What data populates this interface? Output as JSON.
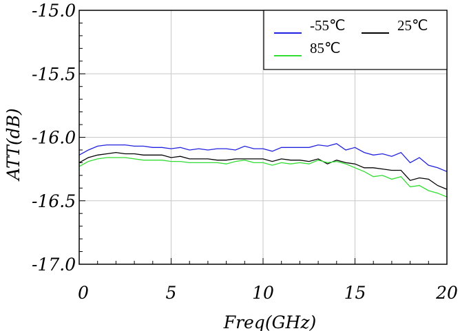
{
  "chart_data": {
    "type": "line",
    "xlabel": "Freq(GHz)",
    "ylabel": "ATT(dB)",
    "xlim": [
      0,
      20
    ],
    "ylim": [
      -17.0,
      -15.0
    ],
    "xticks": [
      "0",
      "5",
      "10",
      "15",
      "20"
    ],
    "yticks": [
      "-15.0",
      "-15.5",
      "-16.0",
      "-16.5",
      "-17.0"
    ],
    "grid": true,
    "legend_position": "top-right",
    "x": [
      0,
      0.5,
      1,
      1.5,
      2,
      2.5,
      3,
      3.5,
      4,
      4.5,
      5,
      5.5,
      6,
      6.5,
      7,
      7.5,
      8,
      8.5,
      9,
      9.5,
      10,
      10.5,
      11,
      11.5,
      12,
      12.5,
      13,
      13.5,
      14,
      14.5,
      15,
      15.5,
      16,
      16.5,
      17,
      17.5,
      18,
      18.5,
      19,
      19.5,
      20
    ],
    "series": [
      {
        "name": "-55℃",
        "color": "#2020e0",
        "values": [
          -16.14,
          -16.1,
          -16.07,
          -16.06,
          -16.06,
          -16.06,
          -16.07,
          -16.07,
          -16.08,
          -16.08,
          -16.09,
          -16.08,
          -16.1,
          -16.09,
          -16.1,
          -16.09,
          -16.09,
          -16.1,
          -16.07,
          -16.09,
          -16.09,
          -16.11,
          -16.08,
          -16.08,
          -16.08,
          -16.08,
          -16.06,
          -16.07,
          -16.05,
          -16.1,
          -16.08,
          -16.12,
          -16.14,
          -16.13,
          -16.15,
          -16.12,
          -16.2,
          -16.16,
          -16.22,
          -16.24,
          -16.27
        ]
      },
      {
        "name": "25℃",
        "color": "#000000",
        "values": [
          -16.2,
          -16.16,
          -16.14,
          -16.13,
          -16.12,
          -16.13,
          -16.13,
          -16.14,
          -16.14,
          -16.14,
          -16.16,
          -16.15,
          -16.17,
          -16.17,
          -16.17,
          -16.18,
          -16.18,
          -16.17,
          -16.17,
          -16.17,
          -16.17,
          -16.19,
          -16.17,
          -16.18,
          -16.18,
          -16.19,
          -16.17,
          -16.21,
          -16.18,
          -16.2,
          -16.21,
          -16.24,
          -16.24,
          -16.25,
          -16.26,
          -16.26,
          -16.34,
          -16.32,
          -16.33,
          -16.38,
          -16.41
        ]
      },
      {
        "name": "85℃",
        "color": "#30dd30",
        "values": [
          -16.23,
          -16.19,
          -16.17,
          -16.16,
          -16.16,
          -16.16,
          -16.17,
          -16.18,
          -16.18,
          -16.18,
          -16.19,
          -16.19,
          -16.2,
          -16.2,
          -16.2,
          -16.2,
          -16.21,
          -16.19,
          -16.18,
          -16.2,
          -16.2,
          -16.22,
          -16.2,
          -16.21,
          -16.2,
          -16.21,
          -16.18,
          -16.2,
          -16.19,
          -16.21,
          -16.24,
          -16.27,
          -16.31,
          -16.3,
          -16.33,
          -16.31,
          -16.39,
          -16.38,
          -16.42,
          -16.44,
          -16.47
        ]
      }
    ]
  }
}
